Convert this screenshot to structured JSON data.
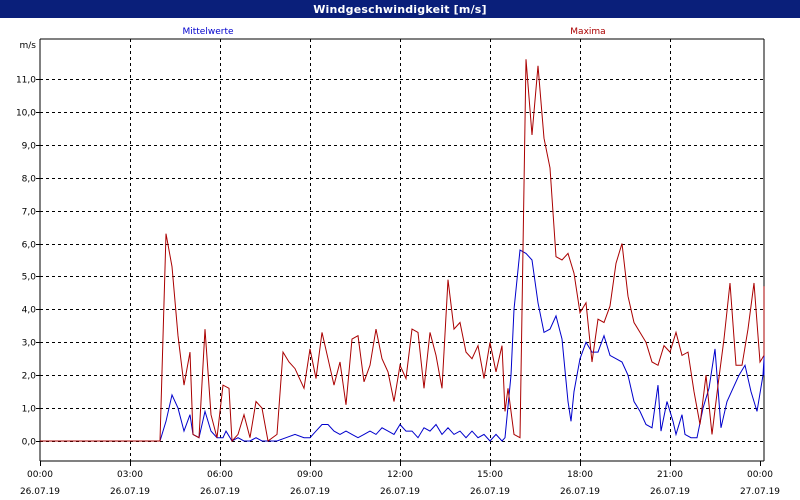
{
  "window": {
    "title": "Windgeschwindigkeit [m/s]"
  },
  "colors": {
    "mean": "#0000cc",
    "max": "#aa0000",
    "title_bg": "#0a1f7a",
    "grid": "#000000"
  },
  "chart_data": {
    "type": "line",
    "title": "Windgeschwindigkeit [m/s]",
    "ylabel": "m/s",
    "xlabel": "",
    "ylim": [
      -0.6,
      12.0
    ],
    "xlim": [
      0,
      24
    ],
    "grid": true,
    "y_ticks": [
      0,
      1,
      2,
      3,
      4,
      5,
      6,
      7,
      8,
      9,
      10,
      11
    ],
    "y_tick_labels": [
      "0,0",
      "1,0",
      "2,0",
      "3,0",
      "4,0",
      "5,0",
      "6,0",
      "7,0",
      "8,0",
      "9,0",
      "10,0",
      "11,0"
    ],
    "x_ticks": [
      0,
      3,
      6,
      9,
      12,
      15,
      18,
      21,
      24
    ],
    "x_tick_labels": [
      [
        "00:00",
        "26.07.19"
      ],
      [
        "03:00",
        "26.07.19"
      ],
      [
        "06:00",
        "26.07.19"
      ],
      [
        "09:00",
        "26.07.19"
      ],
      [
        "12:00",
        "26.07.19"
      ],
      [
        "15:00",
        "26.07.19"
      ],
      [
        "18:00",
        "26.07.19"
      ],
      [
        "21:00",
        "26.07.19"
      ],
      [
        "00:00",
        "27.07.19"
      ]
    ],
    "series": [
      {
        "name": "Mittelwerte",
        "color": "#0000cc",
        "label_position": "left",
        "points": [
          [
            0,
            0
          ],
          [
            4.0,
            0
          ],
          [
            4.2,
            0.6
          ],
          [
            4.4,
            1.4
          ],
          [
            4.6,
            1.0
          ],
          [
            4.8,
            0.3
          ],
          [
            5.0,
            0.8
          ],
          [
            5.1,
            0.2
          ],
          [
            5.3,
            0.1
          ],
          [
            5.5,
            0.9
          ],
          [
            5.7,
            0.3
          ],
          [
            5.9,
            0.1
          ],
          [
            6.1,
            0.1
          ],
          [
            6.2,
            0.3
          ],
          [
            6.4,
            0.0
          ],
          [
            6.6,
            0.1
          ],
          [
            6.8,
            0.0
          ],
          [
            7.0,
            0.0
          ],
          [
            7.2,
            0.1
          ],
          [
            7.4,
            0.0
          ],
          [
            7.6,
            0.0
          ],
          [
            7.9,
            0.0
          ],
          [
            8.2,
            0.1
          ],
          [
            8.5,
            0.2
          ],
          [
            8.8,
            0.1
          ],
          [
            9.0,
            0.1
          ],
          [
            9.2,
            0.3
          ],
          [
            9.4,
            0.5
          ],
          [
            9.6,
            0.5
          ],
          [
            9.8,
            0.3
          ],
          [
            10.0,
            0.2
          ],
          [
            10.2,
            0.3
          ],
          [
            10.4,
            0.2
          ],
          [
            10.6,
            0.1
          ],
          [
            10.8,
            0.2
          ],
          [
            11.0,
            0.3
          ],
          [
            11.2,
            0.2
          ],
          [
            11.4,
            0.4
          ],
          [
            11.6,
            0.3
          ],
          [
            11.8,
            0.2
          ],
          [
            12.0,
            0.5
          ],
          [
            12.2,
            0.3
          ],
          [
            12.4,
            0.3
          ],
          [
            12.6,
            0.1
          ],
          [
            12.8,
            0.4
          ],
          [
            13.0,
            0.3
          ],
          [
            13.2,
            0.5
          ],
          [
            13.4,
            0.2
          ],
          [
            13.6,
            0.4
          ],
          [
            13.8,
            0.2
          ],
          [
            14.0,
            0.3
          ],
          [
            14.2,
            0.1
          ],
          [
            14.4,
            0.3
          ],
          [
            14.6,
            0.1
          ],
          [
            14.8,
            0.2
          ],
          [
            15.0,
            0.0
          ],
          [
            15.2,
            0.2
          ],
          [
            15.4,
            0.0
          ],
          [
            15.5,
            0.1
          ],
          [
            15.7,
            2.0
          ],
          [
            15.8,
            4.0
          ],
          [
            16.0,
            5.8
          ],
          [
            16.2,
            5.7
          ],
          [
            16.4,
            5.5
          ],
          [
            16.6,
            4.2
          ],
          [
            16.8,
            3.3
          ],
          [
            17.0,
            3.4
          ],
          [
            17.2,
            3.8
          ],
          [
            17.4,
            3.1
          ],
          [
            17.6,
            1.2
          ],
          [
            17.7,
            0.6
          ],
          [
            17.8,
            1.5
          ],
          [
            18.0,
            2.5
          ],
          [
            18.2,
            3.0
          ],
          [
            18.4,
            2.7
          ],
          [
            18.6,
            2.7
          ],
          [
            18.8,
            3.2
          ],
          [
            19.0,
            2.6
          ],
          [
            19.2,
            2.5
          ],
          [
            19.4,
            2.4
          ],
          [
            19.6,
            2.0
          ],
          [
            19.8,
            1.2
          ],
          [
            20.0,
            0.9
          ],
          [
            20.2,
            0.5
          ],
          [
            20.4,
            0.4
          ],
          [
            20.6,
            1.7
          ],
          [
            20.7,
            0.3
          ],
          [
            20.9,
            1.2
          ],
          [
            21.1,
            0.6
          ],
          [
            21.2,
            0.2
          ],
          [
            21.4,
            0.8
          ],
          [
            21.5,
            0.2
          ],
          [
            21.7,
            0.1
          ],
          [
            21.9,
            0.1
          ],
          [
            22.1,
            1.0
          ],
          [
            22.3,
            1.6
          ],
          [
            22.5,
            2.8
          ],
          [
            22.7,
            0.4
          ],
          [
            22.9,
            1.2
          ],
          [
            23.1,
            1.6
          ],
          [
            23.3,
            2.0
          ],
          [
            23.5,
            2.3
          ],
          [
            23.7,
            1.5
          ],
          [
            23.9,
            0.9
          ],
          [
            24.1,
            2.0
          ],
          [
            24.3,
            2.5
          ],
          [
            24.5,
            2.0
          ],
          [
            24.7,
            2.2
          ],
          [
            24.9,
            2.7
          ]
        ]
      },
      {
        "name": "Maxima",
        "color": "#aa0000",
        "label_position": "right",
        "points": [
          [
            0,
            0
          ],
          [
            4.0,
            0
          ],
          [
            4.2,
            6.3
          ],
          [
            4.4,
            5.3
          ],
          [
            4.6,
            3.2
          ],
          [
            4.8,
            1.7
          ],
          [
            5.0,
            2.7
          ],
          [
            5.1,
            0.2
          ],
          [
            5.3,
            0.1
          ],
          [
            5.5,
            3.4
          ],
          [
            5.7,
            0.8
          ],
          [
            5.9,
            0.1
          ],
          [
            6.1,
            1.7
          ],
          [
            6.3,
            1.6
          ],
          [
            6.4,
            0.0
          ],
          [
            6.6,
            0.2
          ],
          [
            6.8,
            0.8
          ],
          [
            7.0,
            0.1
          ],
          [
            7.2,
            1.2
          ],
          [
            7.4,
            1.0
          ],
          [
            7.6,
            0.0
          ],
          [
            7.9,
            0.2
          ],
          [
            8.1,
            2.7
          ],
          [
            8.3,
            2.4
          ],
          [
            8.5,
            2.2
          ],
          [
            8.8,
            1.6
          ],
          [
            9.0,
            2.8
          ],
          [
            9.2,
            1.9
          ],
          [
            9.4,
            3.3
          ],
          [
            9.6,
            2.5
          ],
          [
            9.8,
            1.7
          ],
          [
            10.0,
            2.4
          ],
          [
            10.2,
            1.1
          ],
          [
            10.4,
            3.1
          ],
          [
            10.6,
            3.2
          ],
          [
            10.8,
            1.8
          ],
          [
            11.0,
            2.3
          ],
          [
            11.2,
            3.4
          ],
          [
            11.4,
            2.5
          ],
          [
            11.6,
            2.1
          ],
          [
            11.8,
            1.2
          ],
          [
            12.0,
            2.3
          ],
          [
            12.2,
            1.9
          ],
          [
            12.4,
            3.4
          ],
          [
            12.6,
            3.3
          ],
          [
            12.8,
            1.6
          ],
          [
            13.0,
            3.3
          ],
          [
            13.2,
            2.6
          ],
          [
            13.4,
            1.6
          ],
          [
            13.6,
            4.9
          ],
          [
            13.8,
            3.4
          ],
          [
            14.0,
            3.6
          ],
          [
            14.2,
            2.7
          ],
          [
            14.4,
            2.5
          ],
          [
            14.6,
            2.9
          ],
          [
            14.8,
            1.9
          ],
          [
            15.0,
            3.0
          ],
          [
            15.2,
            2.1
          ],
          [
            15.4,
            2.9
          ],
          [
            15.5,
            0.9
          ],
          [
            15.6,
            1.6
          ],
          [
            15.8,
            0.2
          ],
          [
            16.0,
            0.1
          ],
          [
            16.2,
            11.6
          ],
          [
            16.4,
            9.3
          ],
          [
            16.6,
            11.4
          ],
          [
            16.8,
            9.2
          ],
          [
            17.0,
            8.3
          ],
          [
            17.2,
            5.6
          ],
          [
            17.4,
            5.5
          ],
          [
            17.6,
            5.7
          ],
          [
            17.8,
            5.1
          ],
          [
            18.0,
            3.9
          ],
          [
            18.2,
            4.2
          ],
          [
            18.4,
            2.4
          ],
          [
            18.6,
            3.7
          ],
          [
            18.8,
            3.6
          ],
          [
            19.0,
            4.1
          ],
          [
            19.2,
            5.4
          ],
          [
            19.4,
            6.0
          ],
          [
            19.6,
            4.4
          ],
          [
            19.8,
            3.6
          ],
          [
            20.0,
            3.3
          ],
          [
            20.2,
            3.0
          ],
          [
            20.4,
            2.4
          ],
          [
            20.6,
            2.3
          ],
          [
            20.8,
            2.9
          ],
          [
            21.0,
            2.7
          ],
          [
            21.2,
            3.3
          ],
          [
            21.4,
            2.6
          ],
          [
            21.6,
            2.7
          ],
          [
            21.8,
            1.5
          ],
          [
            22.0,
            0.5
          ],
          [
            22.2,
            2.0
          ],
          [
            22.4,
            0.2
          ],
          [
            22.6,
            1.7
          ],
          [
            22.8,
            3.1
          ],
          [
            23.0,
            4.8
          ],
          [
            23.2,
            2.3
          ],
          [
            23.4,
            2.3
          ],
          [
            23.6,
            3.4
          ],
          [
            23.8,
            4.8
          ],
          [
            24.0,
            2.4
          ],
          [
            24.2,
            2.6
          ],
          [
            24.4,
            3.0
          ],
          [
            24.6,
            3.8
          ],
          [
            24.8,
            3.1
          ],
          [
            25.0,
            4.7
          ]
        ]
      }
    ]
  }
}
